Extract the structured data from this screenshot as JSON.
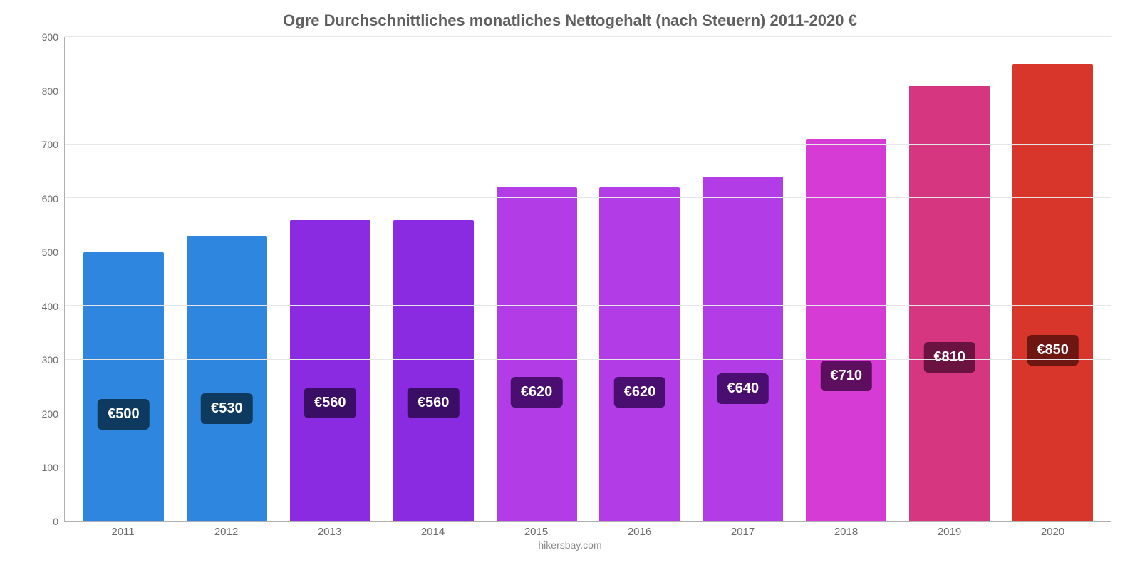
{
  "chart": {
    "type": "bar",
    "title": "Ogre Durchschnittliches monatliches Nettogehalt (nach Steuern) 2011-2020 €",
    "title_fontsize": 22,
    "title_color": "#5f5f5f",
    "credit": "hikersbay.com",
    "credit_color": "#888888",
    "background_color": "#ffffff",
    "axis_line_color": "#b0b0b0",
    "grid_color": "#e6e6e6",
    "tick_label_color": "#6b6b6b",
    "ylim": [
      0,
      900
    ],
    "ytick_step": 100,
    "bar_width_ratio": 0.78,
    "label_fontsize": 20,
    "categories": [
      "2011",
      "2012",
      "2013",
      "2014",
      "2015",
      "2016",
      "2017",
      "2018",
      "2019",
      "2020"
    ],
    "values": [
      500,
      530,
      560,
      560,
      620,
      620,
      640,
      710,
      810,
      850
    ],
    "value_labels": [
      "€500",
      "€530",
      "€560",
      "€560",
      "€620",
      "€620",
      "€640",
      "€710",
      "€810",
      "€850"
    ],
    "bar_colors": [
      "#2e86de",
      "#2e86de",
      "#8a2be2",
      "#8a2be2",
      "#b23ce6",
      "#b23ce6",
      "#b23ce6",
      "#d63bd6",
      "#d6357f",
      "#d9362b"
    ],
    "label_bg_colors": [
      "#0e3a5f",
      "#0e3a5f",
      "#3b0e66",
      "#3b0e66",
      "#4a0e70",
      "#4a0e70",
      "#4a0e70",
      "#5e0e5e",
      "#6b1340",
      "#6e1612"
    ]
  }
}
